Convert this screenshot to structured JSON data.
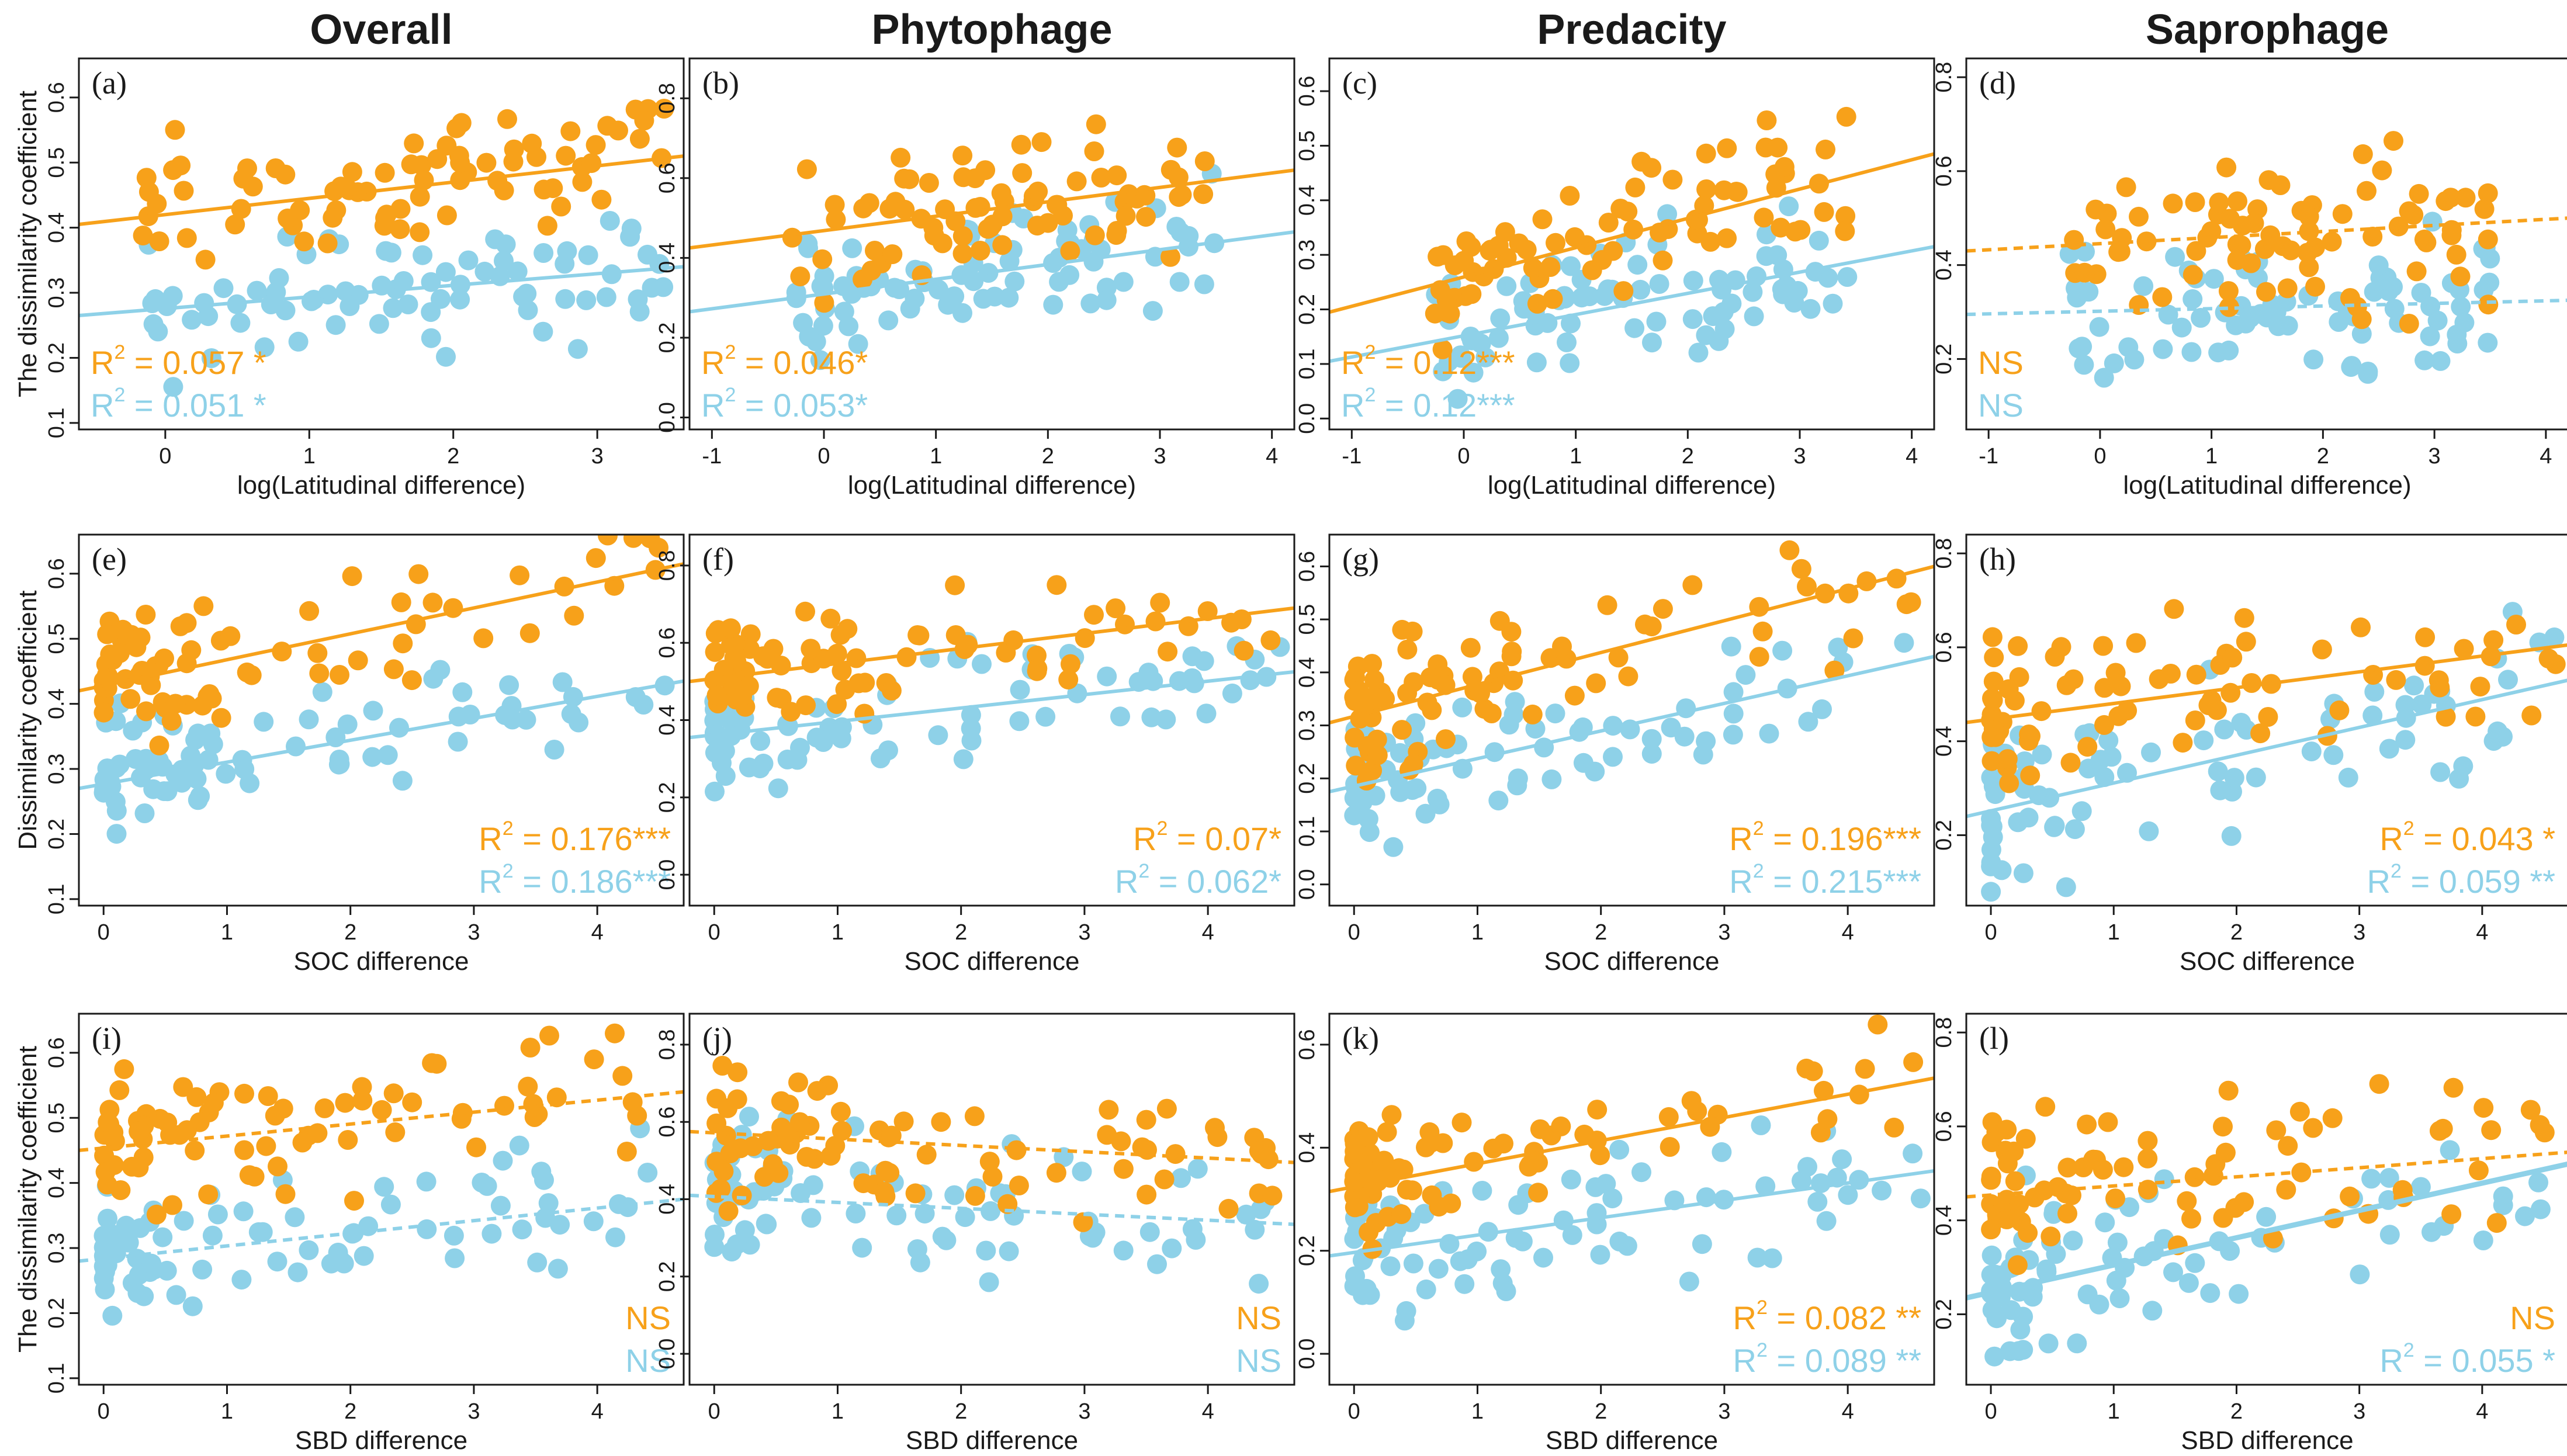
{
  "colors": {
    "orange": "#F7A11A",
    "blue": "#8ED1E8",
    "axis": "#1a1a1a"
  },
  "chart_data": {
    "type": "scatter",
    "layout": "3 rows x 4 columns small-multiple scatter plots with fitted regression lines",
    "columns": [
      "Overall",
      "Phytophage",
      "Predacity",
      "Saprophage"
    ],
    "series_colors": {
      "orange": "#F7A11A",
      "blue": "#8ED1E8"
    },
    "row_axes": [
      {
        "xlabel": "log(Latitudinal difference)",
        "ylabel": "The dissimilarity coefficient"
      },
      {
        "xlabel": "SOC difference",
        "ylabel": "Dissimilarity coefficient"
      },
      {
        "xlabel": "SBD difference",
        "ylabel": "The dissimilarity coefficient"
      }
    ],
    "panels": [
      {
        "label": "(a)",
        "row": 0,
        "col": 0,
        "xlim": [
          -0.6,
          3.6
        ],
        "ylim": [
          0.09,
          0.66
        ],
        "xticks": [
          "0",
          "1",
          "2",
          "3"
        ],
        "xtick_values": [
          0,
          1,
          2,
          3
        ],
        "yticks": [
          "0.1",
          "0.2",
          "0.3",
          "0.4",
          "0.5",
          "0.6"
        ],
        "ytick_values": [
          0.1,
          0.2,
          0.3,
          0.4,
          0.5,
          0.6
        ],
        "seed": 11,
        "xrange": [
          -0.2,
          3.5
        ],
        "n_points": 80,
        "orange_offset": 0.18,
        "blue_offset": 0.0,
        "spread": 0.09,
        "orange_fit": {
          "x": [
            -0.6,
            3.6
          ],
          "y": [
            0.405,
            0.51
          ],
          "dashed": false
        },
        "blue_fit": {
          "x": [
            -0.6,
            3.6
          ],
          "y": [
            0.265,
            0.34
          ],
          "dashed": false
        },
        "orange_stat": {
          "prefix": "R",
          "sup": "2",
          "text": " = 0.057 *"
        },
        "blue_stat": {
          "prefix": "R",
          "sup": "2",
          "text": " = 0.051 *"
        },
        "stat_position": "bottom-left"
      },
      {
        "label": "(b)",
        "row": 0,
        "col": 1,
        "xlim": [
          -1.2,
          4.2
        ],
        "ylim": [
          -0.03,
          0.9
        ],
        "xticks": [
          "-1",
          "0",
          "1",
          "2",
          "3",
          "4"
        ],
        "xtick_values": [
          -1,
          0,
          1,
          2,
          3,
          4
        ],
        "yticks": [
          "0.0",
          "0.2",
          "0.4",
          "0.6",
          "0.8"
        ],
        "ytick_values": [
          0,
          0.2,
          0.4,
          0.6,
          0.8
        ],
        "seed": 23,
        "xrange": [
          -0.3,
          3.5
        ],
        "n_points": 80,
        "orange_offset": 0.14,
        "blue_offset": 0.0,
        "spread": 0.16,
        "orange_fit": {
          "x": [
            -1.2,
            4.2
          ],
          "y": [
            0.425,
            0.62
          ],
          "dashed": false
        },
        "blue_fit": {
          "x": [
            -1.2,
            4.2
          ],
          "y": [
            0.265,
            0.465
          ],
          "dashed": false
        },
        "orange_stat": {
          "prefix": "R",
          "sup": "2",
          "text": " = 0.046*"
        },
        "blue_stat": {
          "prefix": "R",
          "sup": "2",
          "text": " = 0.053*"
        },
        "stat_position": "bottom-left"
      },
      {
        "label": "(c)",
        "row": 0,
        "col": 2,
        "xlim": [
          -1.2,
          4.2
        ],
        "ylim": [
          -0.02,
          0.66
        ],
        "xticks": [
          "-1",
          "0",
          "1",
          "2",
          "3",
          "4"
        ],
        "xtick_values": [
          -1,
          0,
          1,
          2,
          3,
          4
        ],
        "yticks": [
          "0.0",
          "0.1",
          "0.2",
          "0.3",
          "0.4",
          "0.5",
          "0.6"
        ],
        "ytick_values": [
          0,
          0.1,
          0.2,
          0.3,
          0.4,
          0.5,
          0.6
        ],
        "seed": 37,
        "xrange": [
          -0.3,
          3.5
        ],
        "n_points": 80,
        "orange_offset": 0.1,
        "blue_offset": 0.0,
        "spread": 0.11,
        "orange_fit": {
          "x": [
            -1.2,
            4.2
          ],
          "y": [
            0.195,
            0.485
          ],
          "dashed": false
        },
        "blue_fit": {
          "x": [
            -1.2,
            4.2
          ],
          "y": [
            0.105,
            0.315
          ],
          "dashed": false
        },
        "orange_stat": {
          "prefix": "R",
          "sup": "2",
          "text": " = 0.12***"
        },
        "blue_stat": {
          "prefix": "R",
          "sup": "2",
          "text": " = 0.12***"
        },
        "stat_position": "bottom-left"
      },
      {
        "label": "(d)",
        "row": 0,
        "col": 3,
        "xlim": [
          -1.2,
          4.2
        ],
        "ylim": [
          0.05,
          0.84
        ],
        "xticks": [
          "-1",
          "0",
          "1",
          "2",
          "3",
          "4"
        ],
        "xtick_values": [
          -1,
          0,
          1,
          2,
          3,
          4
        ],
        "yticks": [
          "0.2",
          "0.4",
          "0.6",
          "0.8"
        ],
        "ytick_values": [
          0.2,
          0.4,
          0.6,
          0.8
        ],
        "seed": 51,
        "xrange": [
          -0.3,
          3.5
        ],
        "n_points": 80,
        "orange_offset": 0.12,
        "blue_offset": 0.05,
        "spread": 0.16,
        "orange_fit": {
          "x": [
            -1.2,
            4.2
          ],
          "y": [
            0.43,
            0.5
          ],
          "dashed": true
        },
        "blue_fit": {
          "x": [
            -1.2,
            4.2
          ],
          "y": [
            0.295,
            0.325
          ],
          "dashed": true
        },
        "orange_stat": {
          "text": "NS"
        },
        "blue_stat": {
          "text": "NS"
        },
        "stat_position": "bottom-left"
      },
      {
        "label": "(e)",
        "row": 1,
        "col": 0,
        "xlim": [
          -0.2,
          4.7
        ],
        "ylim": [
          0.09,
          0.66
        ],
        "xticks": [
          "0",
          "1",
          "2",
          "3",
          "4"
        ],
        "xtick_values": [
          0,
          1,
          2,
          3,
          4
        ],
        "yticks": [
          "0.1",
          "0.2",
          "0.3",
          "0.4",
          "0.5",
          "0.6"
        ],
        "ytick_values": [
          0.1,
          0.2,
          0.3,
          0.4,
          0.5,
          0.6
        ],
        "seed": 61,
        "xrange": [
          0.0,
          4.6
        ],
        "skew": 2.2,
        "n_points": 80,
        "orange_offset": 0.17,
        "blue_offset": 0.0,
        "spread": 0.09,
        "orange_fit": {
          "x": [
            -0.2,
            4.7
          ],
          "y": [
            0.42,
            0.615
          ],
          "dashed": false
        },
        "blue_fit": {
          "x": [
            -0.2,
            4.7
          ],
          "y": [
            0.27,
            0.435
          ],
          "dashed": false
        },
        "orange_stat": {
          "prefix": "R",
          "sup": "2",
          "text": " = 0.176***"
        },
        "blue_stat": {
          "prefix": "R",
          "sup": "2",
          "text": " = 0.186***"
        },
        "stat_position": "bottom-right"
      },
      {
        "label": "(f)",
        "row": 1,
        "col": 1,
        "xlim": [
          -0.2,
          4.7
        ],
        "ylim": [
          -0.08,
          0.88
        ],
        "xticks": [
          "0",
          "1",
          "2",
          "3",
          "4"
        ],
        "xtick_values": [
          0,
          1,
          2,
          3,
          4
        ],
        "yticks": [
          "0.0",
          "0.2",
          "0.4",
          "0.6",
          "0.8"
        ],
        "ytick_values": [
          0,
          0.2,
          0.4,
          0.6,
          0.8
        ],
        "seed": 73,
        "xrange": [
          0.0,
          4.6
        ],
        "skew": 2.2,
        "n_points": 80,
        "orange_offset": 0.13,
        "blue_offset": 0.0,
        "spread": 0.15,
        "orange_fit": {
          "x": [
            -0.2,
            4.7
          ],
          "y": [
            0.5,
            0.69
          ],
          "dashed": false
        },
        "blue_fit": {
          "x": [
            -0.2,
            4.7
          ],
          "y": [
            0.355,
            0.525
          ],
          "dashed": false
        },
        "orange_stat": {
          "prefix": "R",
          "sup": "2",
          "text": " = 0.07*"
        },
        "blue_stat": {
          "prefix": "R",
          "sup": "2",
          "text": " = 0.062*"
        },
        "stat_position": "bottom-right"
      },
      {
        "label": "(g)",
        "row": 1,
        "col": 2,
        "xlim": [
          -0.2,
          4.7
        ],
        "ylim": [
          -0.04,
          0.66
        ],
        "xticks": [
          "0",
          "1",
          "2",
          "3",
          "4"
        ],
        "xtick_values": [
          0,
          1,
          2,
          3,
          4
        ],
        "yticks": [
          "0.0",
          "0.1",
          "0.2",
          "0.3",
          "0.4",
          "0.5",
          "0.6"
        ],
        "ytick_values": [
          0,
          0.1,
          0.2,
          0.3,
          0.4,
          0.5,
          0.6
        ],
        "seed": 89,
        "xrange": [
          0.0,
          4.6
        ],
        "skew": 2.2,
        "n_points": 80,
        "orange_offset": 0.12,
        "blue_offset": 0.0,
        "spread": 0.12,
        "orange_fit": {
          "x": [
            -0.2,
            4.7
          ],
          "y": [
            0.305,
            0.6
          ],
          "dashed": false
        },
        "blue_fit": {
          "x": [
            -0.2,
            4.7
          ],
          "y": [
            0.175,
            0.43
          ],
          "dashed": false
        },
        "orange_stat": {
          "prefix": "R",
          "sup": "2",
          "text": " = 0.196***"
        },
        "blue_stat": {
          "prefix": "R",
          "sup": "2",
          "text": " = 0.215***"
        },
        "stat_position": "bottom-right"
      },
      {
        "label": "(h)",
        "row": 1,
        "col": 3,
        "xlim": [
          -0.2,
          4.7
        ],
        "ylim": [
          0.05,
          0.84
        ],
        "xticks": [
          "0",
          "1",
          "2",
          "3",
          "4"
        ],
        "xtick_values": [
          0,
          1,
          2,
          3,
          4
        ],
        "yticks": [
          "0.2",
          "0.4",
          "0.6",
          "0.8"
        ],
        "ytick_values": [
          0.2,
          0.4,
          0.6,
          0.8
        ],
        "seed": 97,
        "xrange": [
          0.0,
          4.6
        ],
        "skew": 2.2,
        "n_points": 80,
        "orange_offset": 0.12,
        "blue_offset": 0.0,
        "spread": 0.16,
        "orange_fit": {
          "x": [
            -0.2,
            4.7
          ],
          "y": [
            0.44,
            0.605
          ],
          "dashed": false
        },
        "blue_fit": {
          "x": [
            -0.2,
            4.7
          ],
          "y": [
            0.24,
            0.53
          ],
          "dashed": false
        },
        "orange_stat": {
          "prefix": "R",
          "sup": "2",
          "text": " = 0.043  *"
        },
        "blue_stat": {
          "prefix": "R",
          "sup": "2",
          "text": " = 0.059 **"
        },
        "stat_position": "bottom-right"
      },
      {
        "label": "(i)",
        "row": 2,
        "col": 0,
        "xlim": [
          -0.2,
          4.7
        ],
        "ylim": [
          0.09,
          0.66
        ],
        "xticks": [
          "0",
          "1",
          "2",
          "3",
          "4"
        ],
        "xtick_values": [
          0,
          1,
          2,
          3,
          4
        ],
        "yticks": [
          "0.1",
          "0.2",
          "0.3",
          "0.4",
          "0.5",
          "0.6"
        ],
        "ytick_values": [
          0.1,
          0.2,
          0.3,
          0.4,
          0.5,
          0.6
        ],
        "seed": 103,
        "xrange": [
          0.0,
          4.6
        ],
        "skew": 2.2,
        "n_points": 80,
        "orange_offset": 0.17,
        "blue_offset": 0.0,
        "spread": 0.1,
        "orange_fit": {
          "x": [
            -0.2,
            4.7
          ],
          "y": [
            0.45,
            0.54
          ],
          "dashed": true
        },
        "blue_fit": {
          "x": [
            -0.2,
            4.7
          ],
          "y": [
            0.28,
            0.375
          ],
          "dashed": true
        },
        "orange_stat": {
          "text": "NS"
        },
        "blue_stat": {
          "text": "NS"
        },
        "stat_position": "bottom-right"
      },
      {
        "label": "(j)",
        "row": 2,
        "col": 1,
        "xlim": [
          -0.2,
          4.7
        ],
        "ylim": [
          -0.08,
          0.88
        ],
        "xticks": [
          "0",
          "1",
          "2",
          "3",
          "4"
        ],
        "xtick_values": [
          0,
          1,
          2,
          3,
          4
        ],
        "yticks": [
          "0.0",
          "0.2",
          "0.4",
          "0.6",
          "0.8"
        ],
        "ytick_values": [
          0,
          0.2,
          0.4,
          0.6,
          0.8
        ],
        "seed": 117,
        "xrange": [
          0.0,
          4.6
        ],
        "skew": 2.2,
        "n_points": 80,
        "orange_offset": 0.13,
        "blue_offset": 0.0,
        "spread": 0.16,
        "orange_fit": {
          "x": [
            -0.2,
            4.7
          ],
          "y": [
            0.575,
            0.495
          ],
          "dashed": true
        },
        "blue_fit": {
          "x": [
            -0.2,
            4.7
          ],
          "y": [
            0.41,
            0.335
          ],
          "dashed": true
        },
        "orange_stat": {
          "text": "NS"
        },
        "blue_stat": {
          "text": "NS"
        },
        "stat_position": "bottom-right"
      },
      {
        "label": "(k)",
        "row": 2,
        "col": 2,
        "xlim": [
          -0.2,
          4.7
        ],
        "ylim": [
          -0.06,
          0.66
        ],
        "xticks": [
          "0",
          "1",
          "2",
          "3",
          "4"
        ],
        "xtick_values": [
          0,
          1,
          2,
          3,
          4
        ],
        "yticks": [
          "0.0",
          "0.2",
          "0.4",
          "0.6"
        ],
        "ytick_values": [
          0,
          0.2,
          0.4,
          0.6
        ],
        "seed": 131,
        "xrange": [
          0.0,
          4.6
        ],
        "skew": 2.2,
        "n_points": 80,
        "orange_offset": 0.13,
        "blue_offset": 0.0,
        "spread": 0.12,
        "orange_fit": {
          "x": [
            -0.2,
            4.7
          ],
          "y": [
            0.315,
            0.535
          ],
          "dashed": false
        },
        "blue_fit": {
          "x": [
            -0.2,
            4.7
          ],
          "y": [
            0.19,
            0.355
          ],
          "dashed": false
        },
        "orange_stat": {
          "prefix": "R",
          "sup": "2",
          "text": " = 0.082 **"
        },
        "blue_stat": {
          "prefix": "R",
          "sup": "2",
          "text": " = 0.089 **"
        },
        "stat_position": "bottom-right"
      },
      {
        "label": "(l)",
        "row": 2,
        "col": 3,
        "xlim": [
          -0.2,
          4.7
        ],
        "ylim": [
          0.05,
          0.84
        ],
        "xticks": [
          "0",
          "1",
          "2",
          "3",
          "4"
        ],
        "xtick_values": [
          0,
          1,
          2,
          3,
          4
        ],
        "yticks": [
          "0.2",
          "0.4",
          "0.6",
          "0.8"
        ],
        "ytick_values": [
          0.2,
          0.4,
          0.6,
          0.8
        ],
        "seed": 149,
        "xrange": [
          0.0,
          4.6
        ],
        "skew": 2.2,
        "n_points": 80,
        "orange_offset": 0.12,
        "blue_offset": 0.0,
        "spread": 0.16,
        "orange_fit": {
          "x": [
            -0.2,
            4.7
          ],
          "y": [
            0.45,
            0.545
          ],
          "dashed": true
        },
        "blue_fit": {
          "x": [
            -0.2,
            4.7
          ],
          "y": [
            0.235,
            0.52
          ],
          "dashed": false,
          "thick": true
        },
        "orange_stat": {
          "text": "NS"
        },
        "blue_stat": {
          "prefix": "R",
          "sup": "2",
          "text": " = 0.055  *"
        },
        "stat_position": "bottom-right"
      }
    ]
  }
}
